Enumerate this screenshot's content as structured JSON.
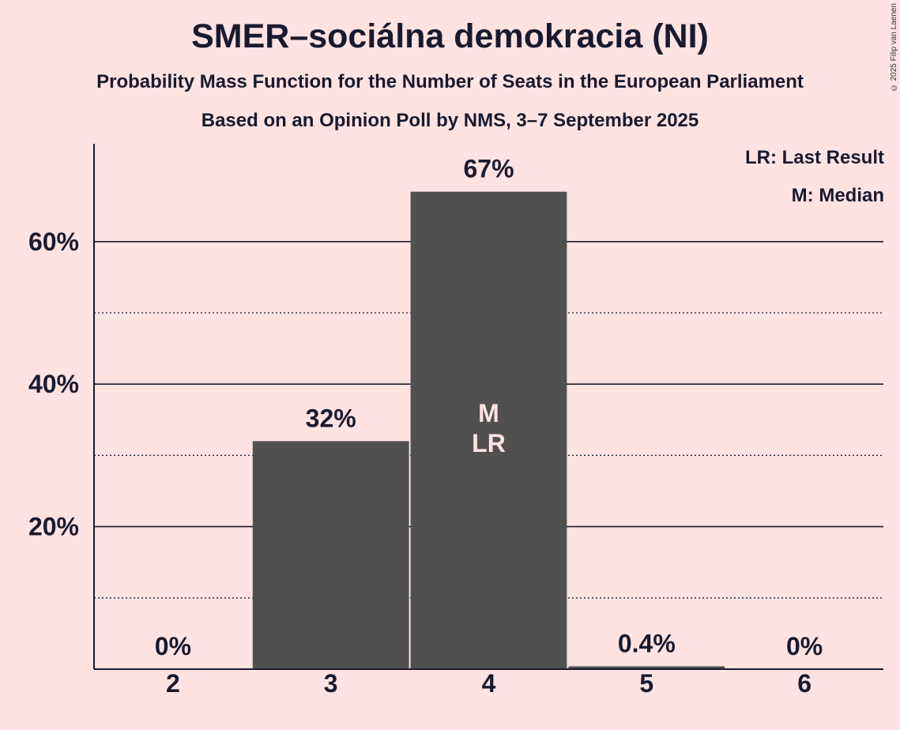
{
  "header": {
    "title": "SMER–sociálna demokracia (NI)",
    "subtitle": "Probability Mass Function for the Number of Seats in the European Parliament",
    "subtitle2": "Based on an Opinion Poll by NMS, 3–7 September 2025",
    "copyright": "© 2025 Filip van Laenen"
  },
  "legend": {
    "last_result": "LR: Last Result",
    "median": "M: Median"
  },
  "colors": {
    "background": "#FFE3E3",
    "bar": "#505050",
    "text": "#1a1a2e",
    "inner_label": "#FFE3E3"
  },
  "chart_data": {
    "type": "bar",
    "categories": [
      "2",
      "3",
      "4",
      "5",
      "6"
    ],
    "values": [
      0,
      32,
      67,
      0.4,
      0
    ],
    "data_labels": [
      "0%",
      "32%",
      "67%",
      "0.4%",
      "0%"
    ],
    "bar_annotations": [
      "",
      "",
      "M\nLR",
      "",
      ""
    ],
    "ylim": [
      0,
      73
    ],
    "yticks": [
      20,
      40,
      60
    ],
    "ytick_labels": [
      "20%",
      "40%",
      "60%"
    ],
    "minor_gridlines": [
      10,
      30,
      50
    ],
    "grid": true,
    "legend_position": "top-right",
    "xlabel": "",
    "ylabel": ""
  }
}
